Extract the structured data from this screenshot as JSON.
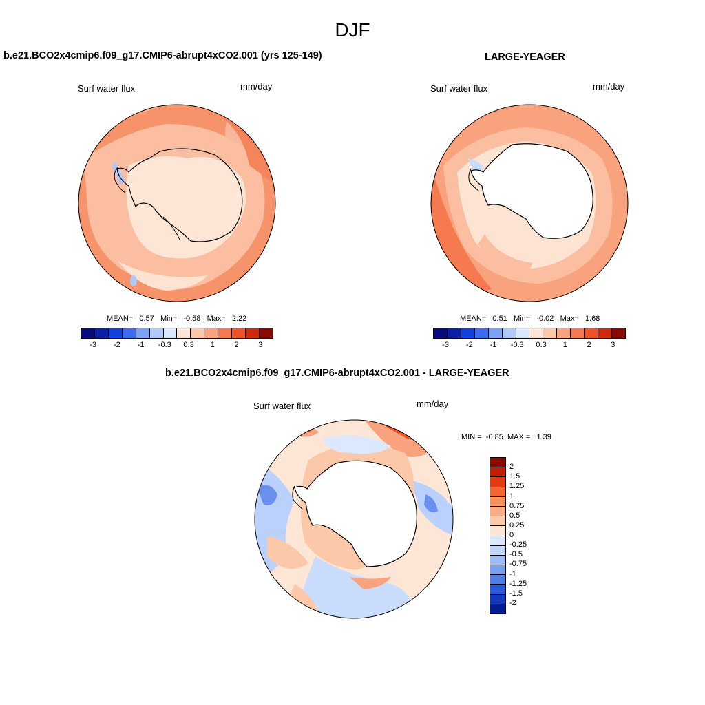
{
  "figure": {
    "season": "DJF"
  },
  "panel_left": {
    "title": "b.e21.BCO2x4cmip6.f09_g17.CMIP6-abrupt4xCO2.001 (yrs 125-149)",
    "variable": "Surf water flux",
    "units": "mm/day",
    "stats": {
      "mean_label": "MEAN=",
      "mean": "0.57",
      "min_label": "Min=",
      "min": "-0.58",
      "max_label": "Max=",
      "max": "2.22"
    }
  },
  "panel_right": {
    "title": "LARGE-YEAGER",
    "variable": "Surf water flux",
    "units": "mm/day",
    "stats": {
      "mean_label": "MEAN=",
      "mean": "0.51",
      "min_label": "Min=",
      "min": "-0.02",
      "max_label": "Max=",
      "max": "1.68"
    }
  },
  "panel_diff": {
    "title": "b.e21.BCO2x4cmip6.f09_g17.CMIP6-abrupt4xCO2.001 - LARGE-YEAGER",
    "variable": "Surf water flux",
    "units": "mm/day",
    "stats": {
      "min_label": "MIN =",
      "min": "-0.85",
      "max_label": "MAX =",
      "max": "1.39"
    }
  },
  "colorbar_main": {
    "colors": [
      "#0a0a7a",
      "#0d1fa8",
      "#1240d8",
      "#3d6cf0",
      "#7ea0f5",
      "#b0c8fa",
      "#dbe8fd",
      "#fde6d6",
      "#fcc8aa",
      "#f9a27e",
      "#f57a50",
      "#ee5226",
      "#cc2a08",
      "#8a0a00"
    ],
    "tick_labels": [
      "-3",
      "-2",
      "-1",
      "-0.3",
      "0.3",
      "1",
      "2",
      "3"
    ]
  },
  "colorbar_diff": {
    "colors": [
      "#8a0a00",
      "#c21e00",
      "#e63a10",
      "#f26632",
      "#f7915e",
      "#f9ac86",
      "#fccbab",
      "#fde6d6",
      "#dbe8fd",
      "#c1d6fb",
      "#9fbdf8",
      "#7aa0f3",
      "#4f7ee9",
      "#2a58d8",
      "#1238c0",
      "#061c94"
    ],
    "tick_labels": [
      "2",
      "1.5",
      "1.25",
      "1",
      "0.75",
      "0.5",
      "0.25",
      "0",
      "-0.25",
      "-0.5",
      "-0.75",
      "-1",
      "-1.25",
      "-1.5",
      "-2"
    ]
  }
}
